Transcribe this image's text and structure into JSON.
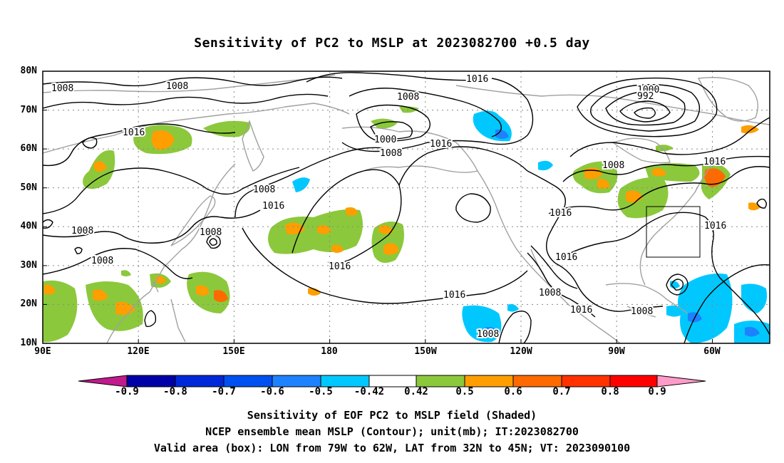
{
  "title": "Sensitivity of PC2 to MSLP at 2023082700 +0.5 day",
  "map": {
    "lat_labels": [
      "80N",
      "70N",
      "60N",
      "50N",
      "40N",
      "30N",
      "20N",
      "10N"
    ],
    "lon_labels": [
      "90E",
      "120E",
      "150E",
      "180",
      "150W",
      "120W",
      "90W",
      "60W"
    ],
    "contour_labels": [
      "1008",
      "1008",
      "1016",
      "1008",
      "1016",
      "1008",
      "1000",
      "1008",
      "1016",
      "1016",
      "1008",
      "1016",
      "1000",
      "992",
      "1008",
      "1016",
      "1016",
      "1008",
      "1008",
      "1008",
      "1008",
      "1016",
      "1016",
      "1016",
      "1008",
      "1016",
      "1016",
      "1008"
    ],
    "colors": {
      "contour": "#000000",
      "coastline": "#a0a0a0",
      "grid": "#888888",
      "box": "#000000"
    }
  },
  "colorbar": {
    "labels": [
      "-0.9",
      "-0.8",
      "-0.7",
      "-0.6",
      "-0.5",
      "-0.42",
      "0.42",
      "0.5",
      "0.6",
      "0.7",
      "0.8",
      "0.9"
    ],
    "colors": [
      "#c01a8c",
      "#0000a8",
      "#0028d8",
      "#0050f0",
      "#1e82ff",
      "#00c8ff",
      "#ffffff",
      "#8cc83c",
      "#ff9e00",
      "#ff6a00",
      "#ff3200",
      "#ff0000",
      "#ff9bc8"
    ]
  },
  "captions": [
    "Sensitivity of EOF PC2 to MSLP field (Shaded)",
    "NCEP ensemble mean MSLP (Contour); unit(mb); IT:2023082700",
    "Valid area (box): LON from 79W to 62W, LAT from 32N to 45N; VT: 2023090100"
  ]
}
